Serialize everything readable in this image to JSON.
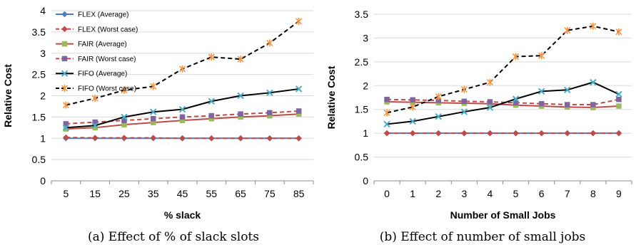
{
  "chart_data": [
    {
      "type": "line",
      "caption": "(a) Effect of % of slack slots",
      "xlabel": "% slack",
      "ylabel": "Relative Cost",
      "categories": [
        "5",
        "15",
        "25",
        "35",
        "45",
        "55",
        "65",
        "75",
        "85"
      ],
      "ylim": [
        0,
        4
      ],
      "yticks": [
        "0",
        "0.5",
        "1",
        "1.5",
        "2",
        "2.5",
        "3",
        "3.5",
        "4"
      ],
      "grid": true,
      "legend_position": "top-left",
      "series": [
        {
          "name": "FLEX (Average)",
          "color": "#4a7ebb",
          "dash": "solid",
          "marker": "diamond",
          "values": [
            1.0,
            1.0,
            1.0,
            1.0,
            1.0,
            1.0,
            1.0,
            1.0,
            1.0
          ]
        },
        {
          "name": "FLEX (Worst case)",
          "color": "#be4b48",
          "dash": "dashed",
          "marker": "diamond",
          "values": [
            1.02,
            1.01,
            1.01,
            1.01,
            1.0,
            1.0,
            1.0,
            1.0,
            1.0
          ]
        },
        {
          "name": "FAIR (Average)",
          "color": "#be4b48",
          "dash": "solid",
          "marker": "square",
          "values": [
            1.22,
            1.25,
            1.32,
            1.37,
            1.42,
            1.46,
            1.5,
            1.53,
            1.57
          ]
        },
        {
          "name": "FAIR (Worst case)",
          "color": "#be4b48",
          "dash": "dashed",
          "marker": "square",
          "values": [
            1.34,
            1.38,
            1.42,
            1.46,
            1.5,
            1.53,
            1.57,
            1.6,
            1.64
          ]
        },
        {
          "name": "FIFO (Average)",
          "color": "#000000",
          "dash": "solid",
          "marker": "x",
          "values": [
            1.25,
            1.3,
            1.5,
            1.62,
            1.68,
            1.87,
            2.0,
            2.07,
            2.16
          ]
        },
        {
          "name": "FIFO (Worst case)",
          "color": "#000000",
          "dash": "dashed",
          "marker": "star",
          "values": [
            1.78,
            1.94,
            2.13,
            2.22,
            2.63,
            2.91,
            2.86,
            3.24,
            3.75
          ]
        }
      ]
    },
    {
      "type": "line",
      "caption": "(b) Effect of number of small jobs",
      "xlabel": "Number of Small Jobs",
      "ylabel": "Relative Cost",
      "categories": [
        "0",
        "1",
        "2",
        "3",
        "4",
        "5",
        "6",
        "7",
        "8",
        "9"
      ],
      "ylim": [
        0,
        3.5
      ],
      "yticks": [
        "0",
        "0.5",
        "1",
        "1.5",
        "2",
        "2.5",
        "3",
        "3.5"
      ],
      "grid": true,
      "series": [
        {
          "name": "FLEX (Average)",
          "color": "#4a7ebb",
          "dash": "solid",
          "marker": "diamond",
          "values": [
            1.0,
            1.0,
            1.0,
            1.0,
            1.0,
            1.0,
            1.0,
            1.0,
            1.0,
            1.0
          ]
        },
        {
          "name": "FLEX (Worst case)",
          "color": "#be4b48",
          "dash": "dashed",
          "marker": "diamond",
          "values": [
            1.0,
            1.0,
            1.0,
            1.0,
            1.0,
            1.0,
            1.0,
            1.0,
            1.0,
            1.0
          ]
        },
        {
          "name": "FAIR (Average)",
          "color": "#be4b48",
          "dash": "solid",
          "marker": "square",
          "values": [
            1.66,
            1.65,
            1.64,
            1.63,
            1.62,
            1.59,
            1.57,
            1.55,
            1.54,
            1.57
          ]
        },
        {
          "name": "FAIR (Worst case)",
          "color": "#be4b48",
          "dash": "dashed",
          "marker": "square",
          "values": [
            1.71,
            1.7,
            1.69,
            1.67,
            1.66,
            1.64,
            1.62,
            1.6,
            1.6,
            1.71
          ]
        },
        {
          "name": "FIFO (Average)",
          "color": "#000000",
          "dash": "solid",
          "marker": "x",
          "values": [
            1.19,
            1.25,
            1.35,
            1.45,
            1.54,
            1.72,
            1.88,
            1.91,
            2.07,
            1.82
          ]
        },
        {
          "name": "FIFO (Worst case)",
          "color": "#000000",
          "dash": "dashed",
          "marker": "star",
          "values": [
            1.43,
            1.55,
            1.77,
            1.92,
            2.07,
            2.61,
            2.63,
            3.16,
            3.25,
            3.13
          ]
        }
      ]
    }
  ],
  "marker_fill": {
    "diamond_blue": "#4a7ebb",
    "diamond_red": "#be4b48",
    "square_fair_avg": "#9bbb59",
    "square_fair_worst": "#8064a2",
    "x_fifo": "#4bacc6",
    "star_fifo": "#f79646"
  }
}
